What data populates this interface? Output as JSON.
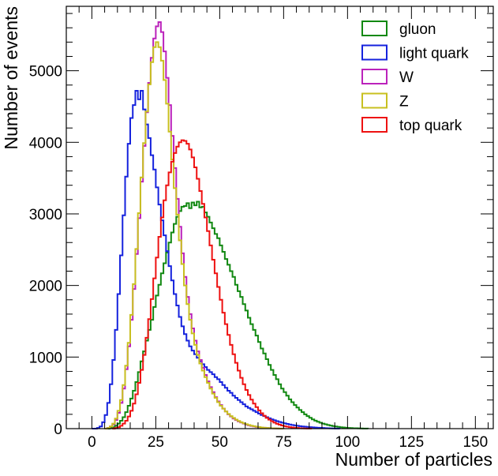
{
  "chart_data": {
    "type": "histogram",
    "title": "",
    "xlabel": "Number of particles",
    "ylabel": "Number of events",
    "xlim": [
      -10,
      157
    ],
    "ylim": [
      0,
      5900
    ],
    "x_ticks": [
      0,
      25,
      50,
      75,
      100,
      125,
      150
    ],
    "y_ticks": [
      0,
      1000,
      2000,
      3000,
      4000,
      5000
    ],
    "x_tick_labels": [
      "0",
      "25",
      "50",
      "75",
      "100",
      "125",
      "150"
    ],
    "y_tick_labels": [
      "0",
      "1000",
      "2000",
      "3000",
      "4000",
      "5000"
    ],
    "bin_width": 1,
    "legend_position": "top-right",
    "series": [
      {
        "name": "gluon",
        "color": "#118811",
        "start": 5,
        "values": [
          0,
          0,
          10,
          20,
          40,
          70,
          110,
          160,
          230,
          320,
          420,
          530,
          650,
          790,
          940,
          1080,
          1230,
          1380,
          1520,
          1700,
          1860,
          2010,
          2170,
          2310,
          2460,
          2600,
          2740,
          2860,
          2960,
          3040,
          3100,
          3110,
          3150,
          3080,
          3160,
          3120,
          3170,
          3090,
          3100,
          3020,
          2960,
          2880,
          2800,
          2720,
          2660,
          2560,
          2470,
          2370,
          2290,
          2200,
          2120,
          2010,
          1920,
          1840,
          1740,
          1650,
          1550,
          1460,
          1380,
          1300,
          1210,
          1120,
          1050,
          970,
          890,
          820,
          750,
          690,
          620,
          560,
          510,
          460,
          410,
          370,
          330,
          295,
          260,
          230,
          200,
          175,
          152,
          130,
          112,
          96,
          82,
          70,
          60,
          51,
          43,
          36,
          30,
          25,
          20,
          16,
          13,
          10,
          8,
          6,
          5,
          4,
          3,
          2,
          1
        ]
      },
      {
        "name": "light quark",
        "color": "#1522dd",
        "start": 0,
        "values": [
          0,
          0,
          10,
          30,
          90,
          190,
          360,
          620,
          960,
          1380,
          1880,
          2420,
          2980,
          3520,
          3980,
          4340,
          4520,
          4720,
          4600,
          4720,
          4460,
          4250,
          4060,
          3820,
          3620,
          3370,
          3130,
          2910,
          2700,
          2480,
          2270,
          2070,
          1880,
          1720,
          1560,
          1430,
          1320,
          1230,
          1150,
          1090,
          1040,
          990,
          940,
          900,
          860,
          820,
          790,
          760,
          720,
          690,
          650,
          610,
          570,
          530,
          500,
          460,
          430,
          400,
          370,
          340,
          310,
          290,
          270,
          250,
          230,
          210,
          190,
          175,
          160,
          145,
          130,
          117,
          105,
          94,
          84,
          75,
          66,
          58,
          51,
          45,
          40,
          35,
          31,
          27,
          24,
          21,
          18,
          15,
          13,
          11,
          9,
          7,
          5,
          4,
          3,
          2,
          1
        ]
      },
      {
        "name": "W",
        "color": "#bb22bb",
        "start": 5,
        "values": [
          0,
          10,
          30,
          60,
          120,
          220,
          360,
          560,
          830,
          1150,
          1520,
          1950,
          2440,
          2940,
          3450,
          3950,
          4420,
          4830,
          5180,
          5450,
          5620,
          5680,
          5540,
          5270,
          4900,
          4520,
          4090,
          3640,
          3210,
          2820,
          2450,
          2120,
          1840,
          1600,
          1400,
          1230,
          1080,
          960,
          850,
          750,
          660,
          580,
          510,
          440,
          380,
          330,
          280,
          240,
          200,
          170,
          140,
          120,
          100,
          85,
          70,
          57,
          46,
          37,
          30,
          24,
          19,
          15,
          12,
          9,
          7,
          5,
          4,
          3,
          2,
          1
        ]
      },
      {
        "name": "Z",
        "color": "#c8c020",
        "start": 5,
        "values": [
          0,
          10,
          30,
          70,
          140,
          250,
          400,
          610,
          880,
          1200,
          1590,
          2020,
          2510,
          3010,
          3510,
          3990,
          4430,
          4810,
          5120,
          5330,
          5400,
          5330,
          5140,
          4870,
          4540,
          4150,
          3760,
          3360,
          2990,
          2630,
          2300,
          2000,
          1740,
          1520,
          1330,
          1170,
          1030,
          910,
          810,
          720,
          640,
          560,
          490,
          430,
          370,
          320,
          280,
          240,
          205,
          175,
          150,
          127,
          107,
          90,
          75,
          62,
          51,
          42,
          34,
          27,
          22,
          17,
          13,
          10,
          8,
          6,
          4,
          3,
          2,
          1
        ]
      },
      {
        "name": "top quark",
        "color": "#ee1111",
        "start": 8,
        "values": [
          0,
          10,
          20,
          40,
          70,
          110,
          170,
          250,
          350,
          480,
          640,
          820,
          1030,
          1270,
          1530,
          1810,
          2100,
          2390,
          2680,
          2950,
          3190,
          3400,
          3580,
          3730,
          3850,
          3940,
          4000,
          4030,
          4020,
          3980,
          3900,
          3790,
          3650,
          3490,
          3320,
          3140,
          2950,
          2760,
          2560,
          2360,
          2170,
          1980,
          1800,
          1620,
          1460,
          1310,
          1170,
          1040,
          920,
          810,
          710,
          620,
          540,
          470,
          405,
          350,
          300,
          255,
          215,
          180,
          150,
          125,
          103,
          84,
          68,
          55,
          44,
          35,
          27,
          21,
          16,
          12,
          9,
          6,
          4,
          3,
          2,
          1
        ]
      }
    ]
  }
}
